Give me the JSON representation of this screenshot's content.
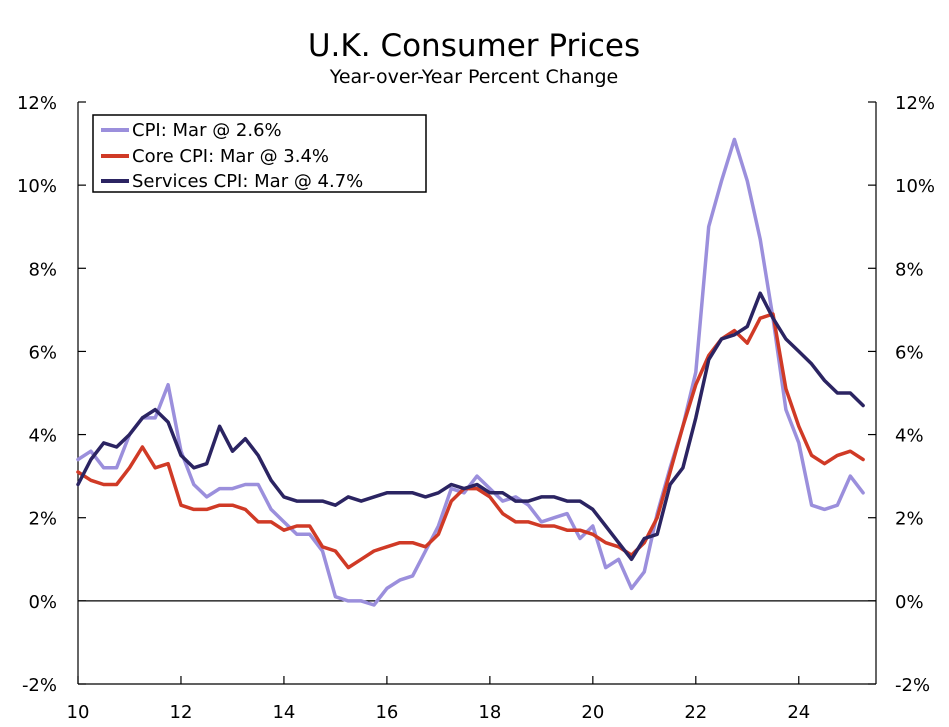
{
  "chart_data": {
    "type": "line",
    "title": "U.K. Consumer Prices",
    "subtitle": "Year-over-Year Percent Change",
    "xlabel": "",
    "ylabel": "",
    "xlim": [
      2010.0,
      2025.5
    ],
    "ylim": [
      -2,
      12
    ],
    "x_ticks": [
      {
        "value": 2010,
        "label": "10"
      },
      {
        "value": 2012,
        "label": "12"
      },
      {
        "value": 2014,
        "label": "14"
      },
      {
        "value": 2016,
        "label": "16"
      },
      {
        "value": 2018,
        "label": "18"
      },
      {
        "value": 2020,
        "label": "20"
      },
      {
        "value": 2022,
        "label": "22"
      },
      {
        "value": 2024,
        "label": "24"
      }
    ],
    "y_ticks": [
      {
        "value": -2,
        "label": "-2%"
      },
      {
        "value": 0,
        "label": "0%"
      },
      {
        "value": 2,
        "label": "2%"
      },
      {
        "value": 4,
        "label": "4%"
      },
      {
        "value": 6,
        "label": "6%"
      },
      {
        "value": 8,
        "label": "8%"
      },
      {
        "value": 10,
        "label": "10%"
      },
      {
        "value": 12,
        "label": "12%"
      }
    ],
    "legend_position": "top-left",
    "series": [
      {
        "name": "CPI",
        "legend": "CPI: Mar @ 2.6%",
        "color": "#9b8fdc",
        "x": [
          2010.0,
          2010.25,
          2010.5,
          2010.75,
          2011.0,
          2011.25,
          2011.5,
          2011.75,
          2012.0,
          2012.25,
          2012.5,
          2012.75,
          2013.0,
          2013.25,
          2013.5,
          2013.75,
          2014.0,
          2014.25,
          2014.5,
          2014.75,
          2015.0,
          2015.25,
          2015.5,
          2015.75,
          2016.0,
          2016.25,
          2016.5,
          2016.75,
          2017.0,
          2017.25,
          2017.5,
          2017.75,
          2018.0,
          2018.25,
          2018.5,
          2018.75,
          2019.0,
          2019.25,
          2019.5,
          2019.75,
          2020.0,
          2020.25,
          2020.5,
          2020.75,
          2021.0,
          2021.25,
          2021.5,
          2021.75,
          2022.0,
          2022.25,
          2022.5,
          2022.75,
          2023.0,
          2023.25,
          2023.5,
          2023.75,
          2024.0,
          2024.25,
          2024.5,
          2024.75,
          2025.0,
          2025.25
        ],
        "values": [
          3.4,
          3.6,
          3.2,
          3.2,
          4.0,
          4.4,
          4.4,
          5.2,
          3.6,
          2.8,
          2.5,
          2.7,
          2.7,
          2.8,
          2.8,
          2.2,
          1.9,
          1.6,
          1.6,
          1.2,
          0.1,
          0.0,
          0.0,
          -0.1,
          0.3,
          0.5,
          0.6,
          1.2,
          1.8,
          2.7,
          2.6,
          3.0,
          2.7,
          2.4,
          2.5,
          2.3,
          1.9,
          2.0,
          2.1,
          1.5,
          1.8,
          0.8,
          1.0,
          0.3,
          0.7,
          2.1,
          3.2,
          4.2,
          5.5,
          9.0,
          10.1,
          11.1,
          10.1,
          8.7,
          6.8,
          4.6,
          3.8,
          2.3,
          2.2,
          2.3,
          3.0,
          2.6
        ]
      },
      {
        "name": "Core CPI",
        "legend": "Core CPI: Mar @ 3.4%",
        "color": "#d03a26",
        "x": [
          2010.0,
          2010.25,
          2010.5,
          2010.75,
          2011.0,
          2011.25,
          2011.5,
          2011.75,
          2012.0,
          2012.25,
          2012.5,
          2012.75,
          2013.0,
          2013.25,
          2013.5,
          2013.75,
          2014.0,
          2014.25,
          2014.5,
          2014.75,
          2015.0,
          2015.25,
          2015.5,
          2015.75,
          2016.0,
          2016.25,
          2016.5,
          2016.75,
          2017.0,
          2017.25,
          2017.5,
          2017.75,
          2018.0,
          2018.25,
          2018.5,
          2018.75,
          2019.0,
          2019.25,
          2019.5,
          2019.75,
          2020.0,
          2020.25,
          2020.5,
          2020.75,
          2021.0,
          2021.25,
          2021.5,
          2021.75,
          2022.0,
          2022.25,
          2022.5,
          2022.75,
          2023.0,
          2023.25,
          2023.5,
          2023.75,
          2024.0,
          2024.25,
          2024.5,
          2024.75,
          2025.0,
          2025.25
        ],
        "values": [
          3.1,
          2.9,
          2.8,
          2.8,
          3.2,
          3.7,
          3.2,
          3.3,
          2.3,
          2.2,
          2.2,
          2.3,
          2.3,
          2.2,
          1.9,
          1.9,
          1.7,
          1.8,
          1.8,
          1.3,
          1.2,
          0.8,
          1.0,
          1.2,
          1.3,
          1.4,
          1.4,
          1.3,
          1.6,
          2.4,
          2.7,
          2.7,
          2.5,
          2.1,
          1.9,
          1.9,
          1.8,
          1.8,
          1.7,
          1.7,
          1.6,
          1.4,
          1.3,
          1.1,
          1.4,
          2.0,
          3.1,
          4.2,
          5.2,
          5.9,
          6.3,
          6.5,
          6.2,
          6.8,
          6.9,
          5.1,
          4.2,
          3.5,
          3.3,
          3.5,
          3.6,
          3.4
        ]
      },
      {
        "name": "Services CPI",
        "legend": "Services CPI: Mar @ 4.7%",
        "color": "#2b2462",
        "x": [
          2010.0,
          2010.25,
          2010.5,
          2010.75,
          2011.0,
          2011.25,
          2011.5,
          2011.75,
          2012.0,
          2012.25,
          2012.5,
          2012.75,
          2013.0,
          2013.25,
          2013.5,
          2013.75,
          2014.0,
          2014.25,
          2014.5,
          2014.75,
          2015.0,
          2015.25,
          2015.5,
          2015.75,
          2016.0,
          2016.25,
          2016.5,
          2016.75,
          2017.0,
          2017.25,
          2017.5,
          2017.75,
          2018.0,
          2018.25,
          2018.5,
          2018.75,
          2019.0,
          2019.25,
          2019.5,
          2019.75,
          2020.0,
          2020.25,
          2020.5,
          2020.75,
          2021.0,
          2021.25,
          2021.5,
          2021.75,
          2022.0,
          2022.25,
          2022.5,
          2022.75,
          2023.0,
          2023.25,
          2023.5,
          2023.75,
          2024.0,
          2024.25,
          2024.5,
          2024.75,
          2025.0,
          2025.25
        ],
        "values": [
          2.8,
          3.4,
          3.8,
          3.7,
          4.0,
          4.4,
          4.6,
          4.3,
          3.5,
          3.2,
          3.3,
          4.2,
          3.6,
          3.9,
          3.5,
          2.9,
          2.5,
          2.4,
          2.4,
          2.4,
          2.3,
          2.5,
          2.4,
          2.5,
          2.6,
          2.6,
          2.6,
          2.5,
          2.6,
          2.8,
          2.7,
          2.8,
          2.6,
          2.6,
          2.4,
          2.4,
          2.5,
          2.5,
          2.4,
          2.4,
          2.2,
          1.8,
          1.4,
          1.0,
          1.5,
          1.6,
          2.8,
          3.2,
          4.4,
          5.8,
          6.3,
          6.4,
          6.6,
          7.4,
          6.8,
          6.3,
          6.0,
          5.7,
          5.3,
          5.0,
          5.0,
          4.7
        ]
      }
    ]
  }
}
